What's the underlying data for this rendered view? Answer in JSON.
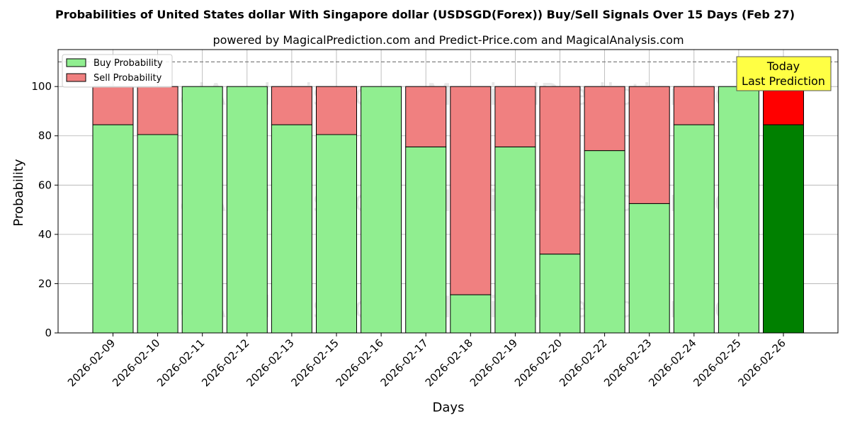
{
  "chart_data": {
    "type": "bar",
    "title": "Probabilities of United States dollar With Singapore dollar (USDSGD(Forex)) Buy/Sell Signals Over 15 Days (Feb 27)",
    "subtitle": "powered by MagicalPrediction.com and Predict-Price.com and MagicalAnalysis.com",
    "xlabel": "Days",
    "ylabel": "Probability",
    "ylim": [
      0,
      115
    ],
    "yticks": [
      0,
      20,
      40,
      60,
      80,
      100
    ],
    "grid": true,
    "stacked": true,
    "reference_line": 110,
    "categories": [
      "2026-02-09",
      "2026-02-10",
      "2026-02-11",
      "2026-02-12",
      "2026-02-13",
      "2026-02-15",
      "2026-02-16",
      "2026-02-17",
      "2026-02-18",
      "2026-02-19",
      "2026-02-20",
      "2026-02-22",
      "2026-02-23",
      "2026-02-24",
      "2026-02-25",
      "2026-02-26"
    ],
    "series": [
      {
        "name": "Buy Probability",
        "color": "#90EE90",
        "highlight_color": "#008000",
        "values": [
          84.5,
          80.5,
          100,
          100,
          84.5,
          80.5,
          100,
          75.5,
          15.5,
          75.5,
          32,
          74,
          52.5,
          84.5,
          100,
          84.5
        ]
      },
      {
        "name": "Sell Probability",
        "color": "#F08080",
        "highlight_color": "#FF0000",
        "values": [
          15.5,
          19.5,
          0,
          0,
          15.5,
          19.5,
          0,
          24.5,
          84.5,
          24.5,
          68,
          26,
          47.5,
          15.5,
          0,
          15.5
        ]
      }
    ],
    "legend_position": "top-left",
    "annotation": {
      "lines": [
        "Today",
        "Last Prediction"
      ],
      "color": "#FFFF44",
      "position": "top-right"
    },
    "watermarks": [
      "MagicalAnalysis.com",
      "MagicalPrediction.com"
    ]
  }
}
